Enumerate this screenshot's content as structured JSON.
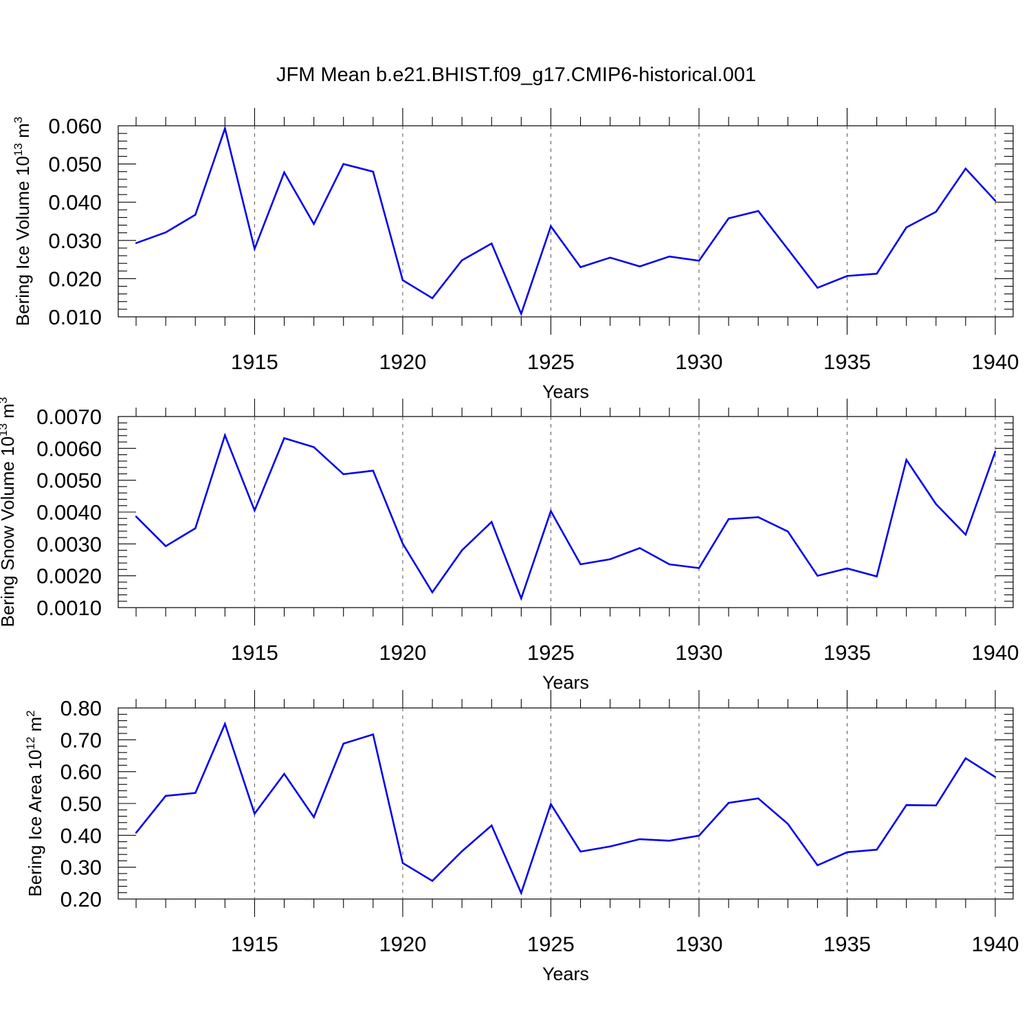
{
  "page_title": "JFM Mean b.e21.BHIST.f09_g17.CMIP6-historical.001",
  "colors": {
    "line": "#0000ee",
    "axes": "#000000",
    "grid": "#555555"
  },
  "chart_data": [
    {
      "type": "line",
      "title": "JFM Mean b.e21.BHIST.f09_g17.CMIP6-historical.001",
      "xlabel": "Years",
      "ylabel": {
        "text": "Bering Ice Volume 10",
        "exponent": "13",
        "unit": "m",
        "unit_exponent": "3"
      },
      "xlim": [
        1911,
        1940
      ],
      "ylim": [
        0.01,
        0.06
      ],
      "xticks": [
        "1915",
        "1920",
        "1925",
        "1930",
        "1935",
        "1940"
      ],
      "yticks": [
        "0.010",
        "0.020",
        "0.030",
        "0.040",
        "0.050",
        "0.060"
      ],
      "grid": "vertical dashed at major x ticks",
      "x": [
        1911,
        1912,
        1913,
        1914,
        1915,
        1916,
        1917,
        1918,
        1919,
        1920,
        1921,
        1922,
        1923,
        1924,
        1925,
        1926,
        1927,
        1928,
        1929,
        1930,
        1931,
        1932,
        1933,
        1934,
        1935,
        1936,
        1937,
        1938,
        1939,
        1940
      ],
      "series": [
        {
          "values": [
            0.0293,
            0.0321,
            0.0367,
            0.0593,
            0.0278,
            0.0478,
            0.0343,
            0.05,
            0.048,
            0.0196,
            0.0149,
            0.0248,
            0.0292,
            0.0108,
            0.0337,
            0.023,
            0.0255,
            0.0232,
            0.0258,
            0.0247,
            0.0358,
            0.0377,
            0.0277,
            0.0176,
            0.0207,
            0.0213,
            0.0334,
            0.0375,
            0.0488,
            0.0404
          ]
        }
      ]
    },
    {
      "type": "line",
      "xlabel": "Years",
      "ylabel": {
        "text": "Bering Snow Volume 10",
        "exponent": "13",
        "unit": "m",
        "unit_exponent": "3"
      },
      "xlim": [
        1911,
        1940
      ],
      "ylim": [
        0.001,
        0.007
      ],
      "xticks": [
        "1915",
        "1920",
        "1925",
        "1930",
        "1935",
        "1940"
      ],
      "yticks": [
        "0.0010",
        "0.0020",
        "0.0030",
        "0.0040",
        "0.0050",
        "0.0060",
        "0.0070"
      ],
      "grid": "vertical dashed at major x ticks",
      "x": [
        1911,
        1912,
        1913,
        1914,
        1915,
        1916,
        1917,
        1918,
        1919,
        1920,
        1921,
        1922,
        1923,
        1924,
        1925,
        1926,
        1927,
        1928,
        1929,
        1930,
        1931,
        1932,
        1933,
        1934,
        1935,
        1936,
        1937,
        1938,
        1939,
        1940
      ],
      "series": [
        {
          "values": [
            0.00386,
            0.00293,
            0.00349,
            0.00641,
            0.00405,
            0.00632,
            0.00604,
            0.00519,
            0.0053,
            0.00301,
            0.00148,
            0.0028,
            0.00369,
            0.00129,
            0.00403,
            0.00236,
            0.00252,
            0.00287,
            0.00236,
            0.00224,
            0.00378,
            0.00384,
            0.00339,
            0.002,
            0.00223,
            0.00198,
            0.00564,
            0.00425,
            0.00329,
            0.0059
          ]
        }
      ]
    },
    {
      "type": "line",
      "xlabel": "Years",
      "ylabel": {
        "text": "Bering Ice Area 10",
        "exponent": "12",
        "unit": "m",
        "unit_exponent": "2"
      },
      "xlim": [
        1911,
        1940
      ],
      "ylim": [
        0.2,
        0.8
      ],
      "xticks": [
        "1915",
        "1920",
        "1925",
        "1930",
        "1935",
        "1940"
      ],
      "yticks": [
        "0.20",
        "0.30",
        "0.40",
        "0.50",
        "0.60",
        "0.70",
        "0.80"
      ],
      "grid": "vertical dashed at major x ticks",
      "x": [
        1911,
        1912,
        1913,
        1914,
        1915,
        1916,
        1917,
        1918,
        1919,
        1920,
        1921,
        1922,
        1923,
        1924,
        1925,
        1926,
        1927,
        1928,
        1929,
        1930,
        1931,
        1932,
        1933,
        1934,
        1935,
        1936,
        1937,
        1938,
        1939,
        1940
      ],
      "series": [
        {
          "values": [
            0.408,
            0.524,
            0.533,
            0.75,
            0.468,
            0.593,
            0.457,
            0.688,
            0.717,
            0.313,
            0.257,
            0.35,
            0.431,
            0.219,
            0.498,
            0.349,
            0.365,
            0.388,
            0.383,
            0.399,
            0.502,
            0.516,
            0.436,
            0.306,
            0.347,
            0.355,
            0.495,
            0.494,
            0.642,
            0.583
          ]
        }
      ]
    }
  ]
}
